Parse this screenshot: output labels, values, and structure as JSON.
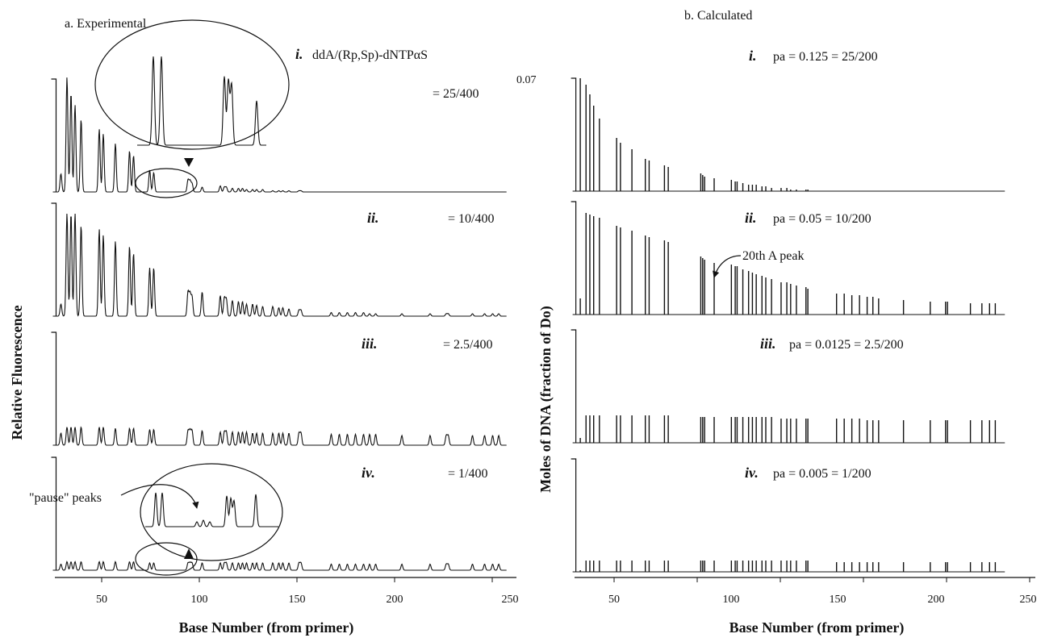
{
  "panels": {
    "a": {
      "title": "a. Experimental"
    },
    "b": {
      "title": "b. Calculated"
    }
  },
  "y_labels": {
    "a": "Relative Fluorescence",
    "b": "Moles of DNA (fraction of Do)"
  },
  "x_label": "Base Number (from primer)",
  "x_ticks": [
    "50",
    "100",
    "150",
    "200",
    "250"
  ],
  "y_tick_b_top": "0.07",
  "rows_a": [
    {
      "roman": "i.",
      "label_main": "ddA/(Rp,Sp)-dNTPαS",
      "label_ratio": "= 25/400"
    },
    {
      "roman": "ii.",
      "label_ratio": "= 10/400"
    },
    {
      "roman": "iii.",
      "label_ratio": "= 2.5/400"
    },
    {
      "roman": "iv.",
      "label_ratio": "= 1/400"
    }
  ],
  "rows_b": [
    {
      "roman": "i.",
      "label": "pa = 0.125 = 25/200"
    },
    {
      "roman": "ii.",
      "label": "pa = 0.05 = 10/200"
    },
    {
      "roman": "iii.",
      "label": "pa = 0.0125 = 2.5/200"
    },
    {
      "roman": "iv.",
      "label": "pa = 0.005 = 1/200"
    }
  ],
  "annotations": {
    "pause": "\"pause\" peaks",
    "twentieth": "20th A peak"
  },
  "chart_data": [
    {
      "type": "line",
      "title": "a. Experimental",
      "xlabel": "Base Number (from primer)",
      "ylabel": "Relative Fluorescence",
      "xlim": [
        25,
        250
      ],
      "peak_positions": [
        28,
        31,
        33,
        35,
        38,
        47,
        49,
        55,
        62,
        64,
        72,
        74,
        91,
        92,
        93,
        98,
        107,
        109,
        110,
        113,
        116,
        118,
        120,
        123,
        125,
        128,
        133,
        136,
        138,
        141,
        146,
        147,
        162,
        166,
        170,
        174,
        178,
        181,
        184,
        197,
        211,
        219,
        220,
        232,
        238,
        242,
        245
      ],
      "series": [
        {
          "name": "i. = 25/400",
          "values": [
            0.15,
            0.95,
            0.82,
            0.72,
            0.6,
            0.52,
            0.48,
            0.4,
            0.34,
            0.3,
            0.18,
            0.16,
            0.1,
            0.09,
            0.07,
            0.04,
            0.05,
            0.04,
            0.04,
            0.03,
            0.03,
            0.03,
            0.02,
            0.02,
            0.02,
            0.02,
            0.01,
            0.01,
            0.01,
            0.01,
            0.01,
            0.01,
            0,
            0,
            0,
            0,
            0,
            0,
            0,
            0,
            0,
            0,
            0,
            0,
            0,
            0,
            0
          ]
        },
        {
          "name": "ii. = 10/400",
          "values": [
            0.1,
            0.85,
            0.85,
            0.85,
            0.75,
            0.72,
            0.67,
            0.62,
            0.58,
            0.52,
            0.4,
            0.4,
            0.2,
            0.18,
            0.16,
            0.2,
            0.17,
            0.15,
            0.14,
            0.13,
            0.12,
            0.12,
            0.1,
            0.1,
            0.09,
            0.08,
            0.08,
            0.07,
            0.07,
            0.06,
            0.05,
            0.05,
            0.03,
            0.03,
            0.03,
            0.03,
            0.03,
            0.02,
            0.02,
            0.02,
            0.02,
            0.02,
            0.02,
            0.02,
            0.02,
            0.02,
            0.02
          ]
        },
        {
          "name": "iii. = 2.5/400",
          "values": [
            0.1,
            0.15,
            0.15,
            0.15,
            0.15,
            0.15,
            0.15,
            0.14,
            0.14,
            0.14,
            0.13,
            0.13,
            0.12,
            0.12,
            0.12,
            0.12,
            0.11,
            0.11,
            0.11,
            0.11,
            0.11,
            0.11,
            0.11,
            0.1,
            0.1,
            0.1,
            0.1,
            0.1,
            0.1,
            0.1,
            0.1,
            0.1,
            0.09,
            0.09,
            0.09,
            0.09,
            0.09,
            0.09,
            0.09,
            0.08,
            0.08,
            0.08,
            0.08,
            0.08,
            0.08,
            0.08,
            0.08
          ]
        },
        {
          "name": "iv. = 1/400",
          "values": [
            0.05,
            0.07,
            0.07,
            0.07,
            0.07,
            0.07,
            0.07,
            0.07,
            0.07,
            0.07,
            0.06,
            0.06,
            0.06,
            0.06,
            0.06,
            0.06,
            0.06,
            0.06,
            0.06,
            0.06,
            0.06,
            0.06,
            0.06,
            0.06,
            0.06,
            0.06,
            0.06,
            0.06,
            0.06,
            0.06,
            0.06,
            0.06,
            0.05,
            0.05,
            0.05,
            0.05,
            0.05,
            0.05,
            0.05,
            0.05,
            0.05,
            0.05,
            0.05,
            0.05,
            0.05,
            0.05,
            0.05
          ]
        }
      ]
    },
    {
      "type": "bar",
      "title": "b. Calculated",
      "xlabel": "Base Number (from primer)",
      "ylabel": "Moles of DNA (fraction of Do)",
      "xlim": [
        25,
        250
      ],
      "ylim": [
        0,
        0.07
      ],
      "peak_positions": [
        28,
        31,
        33,
        35,
        38,
        47,
        49,
        55,
        62,
        64,
        72,
        74,
        91,
        92,
        93,
        98,
        107,
        109,
        110,
        113,
        116,
        118,
        120,
        123,
        125,
        128,
        133,
        136,
        138,
        141,
        146,
        147,
        162,
        166,
        170,
        174,
        178,
        181,
        184,
        197,
        211,
        219,
        220,
        232,
        238,
        242,
        245
      ],
      "series": [
        {
          "name": "i. pa = 0.125 = 25/200",
          "values": [
            0.07,
            0.066,
            0.06,
            0.053,
            0.045,
            0.033,
            0.03,
            0.026,
            0.02,
            0.019,
            0.016,
            0.015,
            0.011,
            0.01,
            0.009,
            0.008,
            0.007,
            0.006,
            0.006,
            0.005,
            0.004,
            0.004,
            0.004,
            0.003,
            0.003,
            0.002,
            0.002,
            0.002,
            0.001,
            0.001,
            0.001,
            0.001,
            0,
            0,
            0,
            0,
            0,
            0,
            0,
            0,
            0,
            0,
            0,
            0,
            0,
            0,
            0
          ]
        },
        {
          "name": "ii. pa = 0.05 = 10/200",
          "values": [
            0.01,
            0.063,
            0.062,
            0.061,
            0.06,
            0.055,
            0.054,
            0.052,
            0.049,
            0.048,
            0.046,
            0.045,
            0.036,
            0.035,
            0.034,
            0.032,
            0.031,
            0.03,
            0.03,
            0.028,
            0.027,
            0.026,
            0.025,
            0.024,
            0.023,
            0.022,
            0.02,
            0.02,
            0.019,
            0.018,
            0.017,
            0.016,
            0.013,
            0.013,
            0.012,
            0.012,
            0.011,
            0.011,
            0.01,
            0.009,
            0.008,
            0.008,
            0.008,
            0.007,
            0.007,
            0.007,
            0.007
          ]
        },
        {
          "name": "iii. pa = 0.0125 = 2.5/200",
          "values": [
            0.003,
            0.017,
            0.017,
            0.017,
            0.017,
            0.017,
            0.017,
            0.017,
            0.017,
            0.017,
            0.017,
            0.017,
            0.016,
            0.016,
            0.016,
            0.016,
            0.016,
            0.016,
            0.016,
            0.016,
            0.016,
            0.016,
            0.016,
            0.016,
            0.016,
            0.016,
            0.015,
            0.015,
            0.015,
            0.015,
            0.015,
            0.015,
            0.015,
            0.015,
            0.015,
            0.015,
            0.014,
            0.014,
            0.014,
            0.014,
            0.014,
            0.014,
            0.014,
            0.014,
            0.014,
            0.014,
            0.014
          ]
        },
        {
          "name": "iv. pa = 0.005 = 1/200",
          "values": [
            0.001,
            0.007,
            0.007,
            0.007,
            0.007,
            0.007,
            0.007,
            0.007,
            0.007,
            0.007,
            0.007,
            0.007,
            0.007,
            0.007,
            0.007,
            0.007,
            0.007,
            0.007,
            0.007,
            0.007,
            0.007,
            0.007,
            0.007,
            0.007,
            0.007,
            0.007,
            0.007,
            0.007,
            0.007,
            0.007,
            0.007,
            0.007,
            0.006,
            0.006,
            0.006,
            0.006,
            0.006,
            0.006,
            0.006,
            0.006,
            0.006,
            0.006,
            0.006,
            0.006,
            0.006,
            0.006,
            0.006
          ]
        }
      ]
    }
  ]
}
